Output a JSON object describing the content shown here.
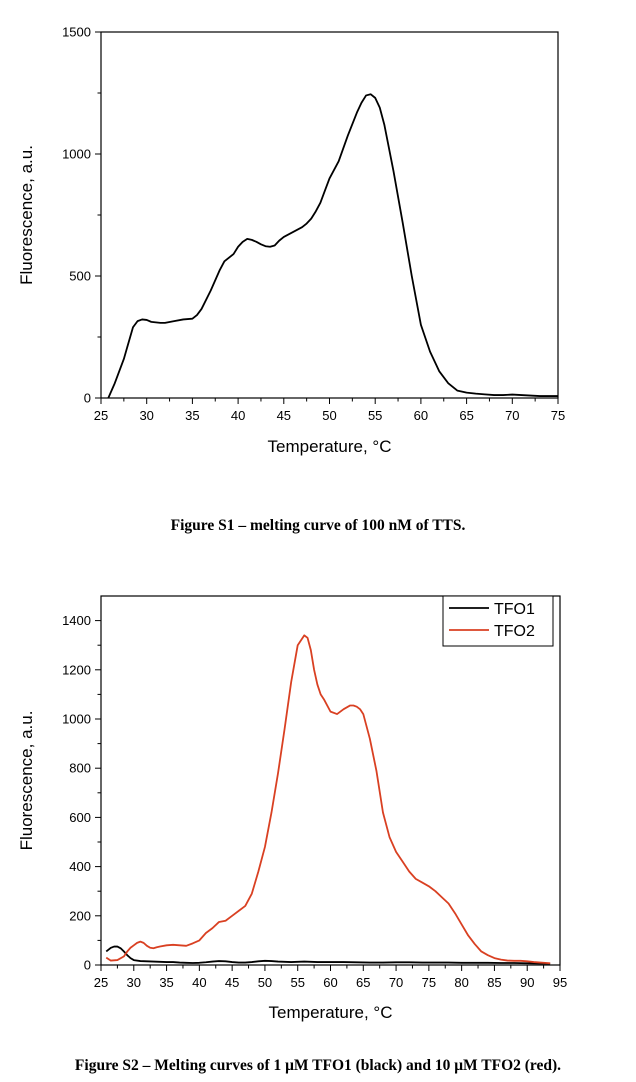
{
  "charts": [
    {
      "caption": "Figure S1 – melting curve of 100 nM of TTS.",
      "chart_data": {
        "type": "line",
        "xlabel": "Temperature, °C",
        "ylabel": "Fluorescence, a.u.",
        "xlim": [
          25,
          75
        ],
        "ylim": [
          0,
          1500
        ],
        "x_major_ticks": [
          25,
          30,
          35,
          40,
          45,
          50,
          55,
          60,
          65,
          70,
          75
        ],
        "x_minor_ticks": [
          27.5,
          32.5,
          37.5,
          42.5,
          47.5,
          52.5,
          57.5,
          62.5,
          67.5,
          72.5
        ],
        "y_major_ticks": [
          0,
          500,
          1000,
          1500
        ],
        "y_minor_ticks": [
          250,
          750,
          1250
        ],
        "grid": false,
        "series": [
          {
            "color": "#000000",
            "x": [
              25.8,
              26.5,
              27.5,
              28.5,
              29.0,
              29.5,
              30.0,
              30.5,
              31.0,
              31.5,
              32.0,
              33.0,
              34.0,
              35.0,
              35.5,
              36.0,
              37.0,
              38.0,
              38.5,
              39.0,
              39.5,
              40.0,
              40.5,
              41.0,
              41.5,
              42.0,
              42.5,
              43.0,
              43.5,
              44.0,
              44.5,
              45.0,
              46.0,
              47.0,
              47.5,
              48.0,
              48.5,
              49.0,
              49.5,
              50.0,
              51.0,
              52.0,
              53.0,
              53.5,
              54.0,
              54.5,
              55.0,
              55.5,
              56.0,
              57.0,
              58.0,
              59.0,
              60.0,
              61.0,
              62.0,
              63.0,
              64.0,
              65.0,
              66.0,
              67.0,
              68.0,
              69.0,
              70.0,
              71.0,
              72.0,
              73.0,
              74.0,
              75.0
            ],
            "y": [
              0,
              60,
              160,
              290,
              315,
              322,
              320,
              312,
              310,
              308,
              308,
              315,
              322,
              325,
              340,
              365,
              440,
              525,
              560,
              575,
              590,
              620,
              640,
              652,
              648,
              640,
              630,
              622,
              620,
              625,
              645,
              660,
              680,
              700,
              715,
              735,
              765,
              800,
              850,
              900,
              970,
              1075,
              1170,
              1210,
              1240,
              1245,
              1230,
              1190,
              1120,
              930,
              720,
              500,
              300,
              190,
              110,
              60,
              30,
              22,
              18,
              15,
              12,
              12,
              14,
              12,
              10,
              8,
              8,
              8
            ]
          }
        ]
      }
    },
    {
      "caption": "Figure S2 – Melting curves of 1 μM TFO1 (black) and 10 μM TFO2 (red).",
      "chart_data": {
        "type": "line",
        "xlabel": "Temperature, °C",
        "ylabel": "Fluorescence, a.u.",
        "xlim": [
          25,
          95
        ],
        "ylim": [
          0,
          1500
        ],
        "x_major_ticks": [
          25,
          30,
          35,
          40,
          45,
          50,
          55,
          60,
          65,
          70,
          75,
          80,
          85,
          90,
          95
        ],
        "x_minor_ticks": [
          27.5,
          32.5,
          37.5,
          42.5,
          47.5,
          52.5,
          57.5,
          62.5,
          67.5,
          72.5,
          77.5,
          82.5,
          87.5,
          92.5
        ],
        "y_major_ticks": [
          0,
          200,
          400,
          600,
          800,
          1000,
          1200,
          1400
        ],
        "y_minor_ticks": [
          100,
          300,
          500,
          700,
          900,
          1100,
          1300
        ],
        "grid": false,
        "legend_position": "top-right",
        "series": [
          {
            "name": "TFO1",
            "color": "#000000",
            "x": [
              25.8,
              26.5,
              27.0,
              27.5,
              28.0,
              28.5,
              29.0,
              29.5,
              30.0,
              31.0,
              32.0,
              33.0,
              34.0,
              35.0,
              36.0,
              37.0,
              38.0,
              39.0,
              40.0,
              41.0,
              42.0,
              43.0,
              44.0,
              45.0,
              46.0,
              47.0,
              48.0,
              49.0,
              50.0,
              51.0,
              52.0,
              53.0,
              54.0,
              55.0,
              56.0,
              57.0,
              58.0,
              60.0,
              62.0,
              64.0,
              66.0,
              68.0,
              70.0,
              72.0,
              74.0,
              76.0,
              78.0,
              80.0,
              82.0,
              84.0,
              86.0,
              88.0,
              90.0,
              92.0,
              93.5
            ],
            "y": [
              55,
              70,
              75,
              75,
              68,
              55,
              40,
              28,
              20,
              16,
              15,
              14,
              13,
              12,
              12,
              10,
              9,
              8,
              9,
              11,
              14,
              16,
              15,
              12,
              10,
              10,
              12,
              15,
              17,
              16,
              14,
              13,
              12,
              13,
              14,
              13,
              12,
              12,
              12,
              11,
              10,
              10,
              11,
              11,
              10,
              10,
              10,
              9,
              9,
              9,
              8,
              8,
              7,
              6,
              6
            ]
          },
          {
            "name": "TFO2",
            "color": "#d94022",
            "x": [
              25.8,
              26.5,
              27.5,
              28.5,
              29.0,
              29.5,
              30.0,
              30.5,
              31.0,
              31.5,
              32.0,
              32.5,
              33.0,
              33.5,
              34.0,
              35.0,
              36.0,
              37.0,
              38.0,
              39.0,
              40.0,
              41.0,
              42.0,
              43.0,
              44.0,
              45.0,
              46.0,
              47.0,
              48.0,
              49.0,
              50.0,
              51.0,
              52.0,
              53.0,
              54.0,
              55.0,
              56.0,
              56.5,
              57.0,
              57.5,
              58.0,
              58.5,
              59.0,
              60.0,
              61.0,
              62.0,
              63.0,
              63.5,
              64.0,
              64.5,
              65.0,
              66.0,
              67.0,
              68.0,
              69.0,
              70.0,
              71.0,
              72.0,
              73.0,
              74.0,
              75.0,
              76.0,
              77.0,
              78.0,
              79.0,
              80.0,
              81.0,
              82.0,
              83.0,
              84.0,
              85.0,
              86.0,
              87.0,
              88.0,
              89.0,
              90.0,
              91.0,
              92.0,
              93.0,
              93.5
            ],
            "y": [
              30,
              18,
              20,
              35,
              55,
              70,
              80,
              90,
              95,
              90,
              78,
              70,
              68,
              72,
              75,
              80,
              82,
              80,
              78,
              88,
              100,
              130,
              150,
              175,
              180,
              200,
              220,
              240,
              290,
              380,
              480,
              620,
              780,
              960,
              1150,
              1300,
              1340,
              1330,
              1280,
              1200,
              1140,
              1100,
              1080,
              1030,
              1020,
              1040,
              1055,
              1055,
              1050,
              1040,
              1020,
              920,
              790,
              620,
              520,
              460,
              420,
              380,
              350,
              335,
              320,
              300,
              275,
              250,
              210,
              165,
              120,
              85,
              55,
              40,
              28,
              22,
              18,
              17,
              17,
              15,
              12,
              10,
              8,
              7
            ]
          }
        ]
      }
    }
  ]
}
